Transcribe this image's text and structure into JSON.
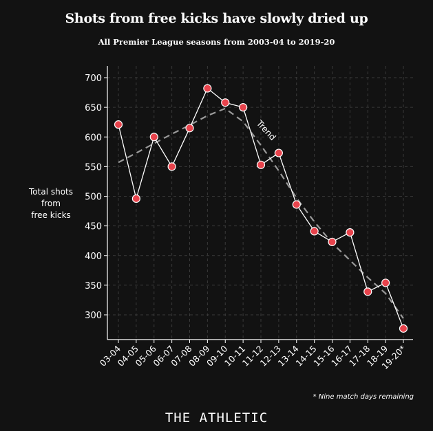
{
  "header": {
    "title": "Shots from free kicks have slowly dried up",
    "subtitle": "All Premier League seasons from 2003-04 to 2019-20"
  },
  "footer": {
    "footnote": "* Nine match days remaining",
    "logo": "THE ATHLETIC"
  },
  "chart_data": {
    "type": "line",
    "title": "Shots from free kicks have slowly dried up",
    "subtitle": "All Premier League seasons from 2003-04 to 2019-20",
    "xlabel": "",
    "ylabel": "Total shots from free kicks",
    "ylabel_lines": [
      "Total shots",
      "from",
      "free kicks"
    ],
    "categories": [
      "03-04",
      "04-05",
      "05-06",
      "06-07",
      "07-08",
      "08-09",
      "09-10",
      "10-11",
      "11-12",
      "12-13",
      "13-14",
      "14-15",
      "15-16",
      "16-17",
      "17-18",
      "18-19",
      "19-20*"
    ],
    "series": [
      {
        "name": "Total shots from free kicks",
        "values": [
          621,
          496,
          600,
          550,
          615,
          682,
          658,
          650,
          553,
          573,
          486,
          441,
          423,
          439,
          339,
          354,
          277
        ]
      }
    ],
    "trend": {
      "label": "Trend",
      "values": [
        557,
        573,
        589,
        605,
        620,
        636,
        648,
        626,
        586,
        543,
        497,
        457,
        421,
        392,
        363,
        336,
        294
      ]
    },
    "ylim": [
      270,
      700
    ],
    "yticks": [
      300,
      350,
      400,
      450,
      500,
      550,
      600,
      650,
      700
    ],
    "grid": true,
    "colors": {
      "background": "#121212",
      "marker": "#e8434c",
      "line": "#ffffff",
      "trend": "#9a9a9a",
      "grid": "#3a3a3a"
    }
  }
}
